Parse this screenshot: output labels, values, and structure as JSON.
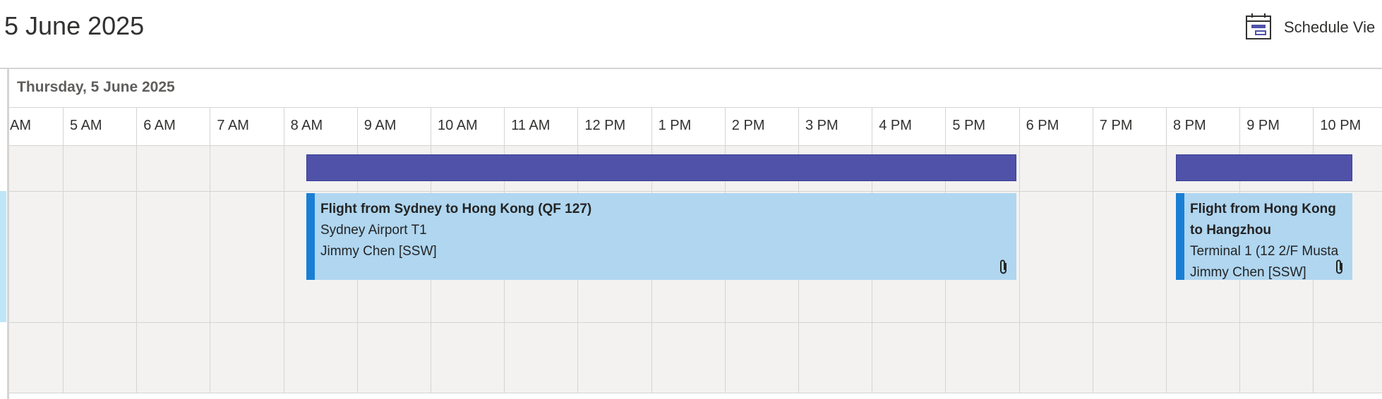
{
  "header": {
    "date_title": "5 June 2025",
    "view_label": "Schedule Vie"
  },
  "day_label": "Thursday, 5 June 2025",
  "hours": [
    "AM",
    "5 AM",
    "6 AM",
    "7 AM",
    "8 AM",
    "9 AM",
    "10 AM",
    "11 AM",
    "12 PM",
    "1 PM",
    "2 PM",
    "3 PM",
    "4 PM",
    "5 PM",
    "6 PM",
    "7 PM",
    "8 PM",
    "9 PM",
    "10 PM"
  ],
  "events": [
    {
      "title": "Flight from Sydney to Hong Kong (QF 127)",
      "location": "Sydney Airport T1",
      "attendee": "Jimmy Chen [SSW]"
    },
    {
      "title": "Flight from Hong Kong to Hangzhou",
      "location": "Terminal 1 (12 2/F Musta",
      "attendee": "Jimmy Chen [SSW]"
    }
  ]
}
